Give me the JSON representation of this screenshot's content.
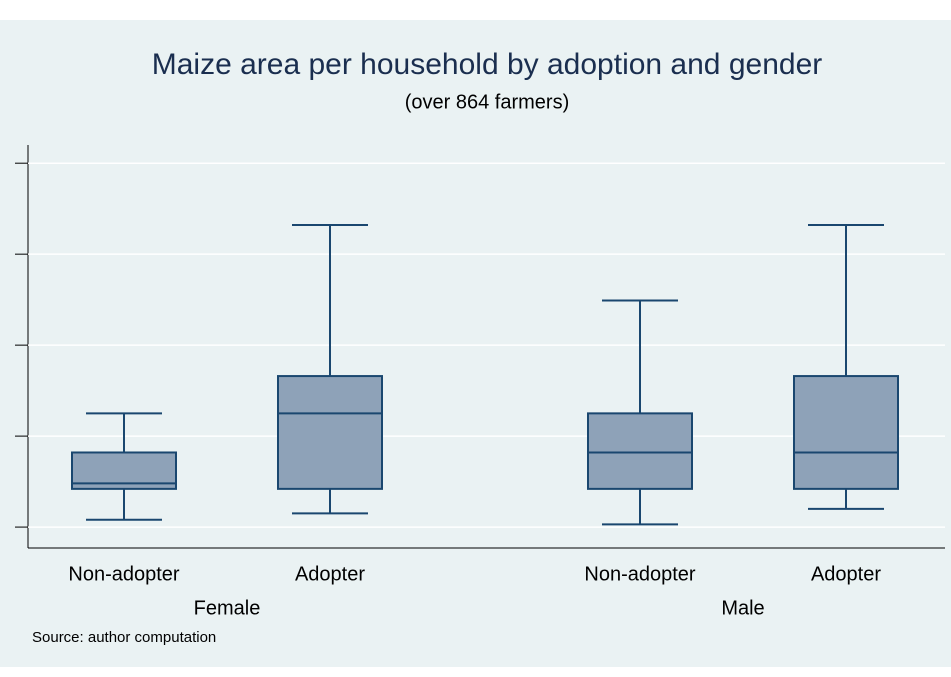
{
  "chart_data": {
    "type": "box",
    "title": "Maize area per household by adoption and gender",
    "subtitle": "(over 864 farmers)",
    "note": "Source: author computation",
    "groups": [
      "Female",
      "Male"
    ],
    "categories": [
      "Non-adopter",
      "Adopter",
      "Non-adopter",
      "Adopter"
    ],
    "whislo": [
      0.08,
      0.15,
      0.03,
      0.2
    ],
    "q1": [
      0.42,
      0.42,
      0.42,
      0.42
    ],
    "med": [
      0.48,
      1.25,
      0.82,
      0.82
    ],
    "q3": [
      0.82,
      1.66,
      1.25,
      1.66
    ],
    "whishi": [
      1.25,
      3.32,
      2.49,
      3.32
    ],
    "color": "#8ea2b8",
    "edge_color": "#1a476f",
    "ylim": [
      -0.23,
      4.2
    ],
    "yticks": [
      0,
      1,
      2,
      3,
      4
    ],
    "grid": true
  }
}
